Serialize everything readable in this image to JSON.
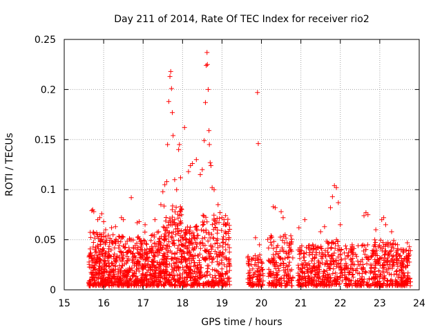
{
  "chart_data": {
    "type": "scatter",
    "title": "Day 211 of 2014, Rate Of TEC Index for receiver rio2",
    "xlabel": "GPS time / hours",
    "ylabel": "ROTI / TECUs",
    "xlim": [
      15,
      24
    ],
    "ylim": [
      0,
      0.25
    ],
    "xticks": [
      15,
      16,
      17,
      18,
      19,
      20,
      21,
      22,
      23,
      24
    ],
    "xtick_labels": [
      "15",
      "16",
      "17",
      "18",
      "19",
      "20",
      "21",
      "22",
      "23",
      "24"
    ],
    "yticks": [
      0,
      0.05,
      0.1,
      0.15,
      0.2,
      0.25
    ],
    "ytick_labels": [
      "0",
      "0.05",
      "0.1",
      "0.15",
      "0.2",
      "0.25"
    ],
    "grid": true,
    "marker": "+",
    "series_color": "#ff0000",
    "series": [
      {
        "name": "rio2",
        "points": [
          [
            15.7,
            0.079
          ],
          [
            15.72,
            0.08
          ],
          [
            15.75,
            0.078
          ],
          [
            15.85,
            0.07
          ],
          [
            15.9,
            0.072
          ],
          [
            15.95,
            0.076
          ],
          [
            16.0,
            0.068
          ],
          [
            16.05,
            0.06
          ],
          [
            16.2,
            0.062
          ],
          [
            16.3,
            0.063
          ],
          [
            16.45,
            0.072
          ],
          [
            16.5,
            0.07
          ],
          [
            16.7,
            0.092
          ],
          [
            16.85,
            0.067
          ],
          [
            16.9,
            0.068
          ],
          [
            17.05,
            0.065
          ],
          [
            17.3,
            0.07
          ],
          [
            17.45,
            0.085
          ],
          [
            17.5,
            0.098
          ],
          [
            17.55,
            0.105
          ],
          [
            17.6,
            0.108
          ],
          [
            17.62,
            0.145
          ],
          [
            17.65,
            0.188
          ],
          [
            17.68,
            0.213
          ],
          [
            17.7,
            0.218
          ],
          [
            17.72,
            0.201
          ],
          [
            17.74,
            0.177
          ],
          [
            17.76,
            0.154
          ],
          [
            17.8,
            0.11
          ],
          [
            17.85,
            0.1
          ],
          [
            17.9,
            0.14
          ],
          [
            17.92,
            0.145
          ],
          [
            17.95,
            0.112
          ],
          [
            18.05,
            0.162
          ],
          [
            18.15,
            0.118
          ],
          [
            18.2,
            0.124
          ],
          [
            18.25,
            0.126
          ],
          [
            18.35,
            0.13
          ],
          [
            18.45,
            0.115
          ],
          [
            18.5,
            0.12
          ],
          [
            18.55,
            0.149
          ],
          [
            18.58,
            0.187
          ],
          [
            18.6,
            0.224
          ],
          [
            18.62,
            0.237
          ],
          [
            18.63,
            0.225
          ],
          [
            18.65,
            0.2
          ],
          [
            18.67,
            0.159
          ],
          [
            18.68,
            0.145
          ],
          [
            18.7,
            0.127
          ],
          [
            18.72,
            0.124
          ],
          [
            18.75,
            0.102
          ],
          [
            18.8,
            0.1
          ],
          [
            18.9,
            0.085
          ],
          [
            18.95,
            0.077
          ],
          [
            19.0,
            0.072
          ],
          [
            19.05,
            0.07
          ],
          [
            19.1,
            0.05
          ],
          [
            19.15,
            0.045
          ],
          [
            19.9,
            0.197
          ],
          [
            19.92,
            0.146
          ],
          [
            19.85,
            0.052
          ],
          [
            19.95,
            0.045
          ],
          [
            20.3,
            0.083
          ],
          [
            20.35,
            0.082
          ],
          [
            20.5,
            0.078
          ],
          [
            20.55,
            0.072
          ],
          [
            20.6,
            0.055
          ],
          [
            20.95,
            0.062
          ],
          [
            21.1,
            0.07
          ],
          [
            21.3,
            0.045
          ],
          [
            21.5,
            0.058
          ],
          [
            21.6,
            0.063
          ],
          [
            21.75,
            0.082
          ],
          [
            21.8,
            0.093
          ],
          [
            21.85,
            0.104
          ],
          [
            21.9,
            0.102
          ],
          [
            21.95,
            0.087
          ],
          [
            22.0,
            0.065
          ],
          [
            22.3,
            0.045
          ],
          [
            22.6,
            0.074
          ],
          [
            22.65,
            0.077
          ],
          [
            22.7,
            0.075
          ],
          [
            22.9,
            0.06
          ],
          [
            23.05,
            0.07
          ],
          [
            23.1,
            0.072
          ],
          [
            23.15,
            0.065
          ],
          [
            23.3,
            0.058
          ],
          [
            23.45,
            0.045
          ],
          [
            23.7,
            0.047
          ],
          [
            23.75,
            0.043
          ]
        ],
        "clusters": [
          {
            "x_start": 15.62,
            "x_end": 16.05,
            "y_max": 0.058,
            "count": 200,
            "seed": 11
          },
          {
            "x_start": 16.05,
            "x_end": 16.5,
            "y_max": 0.055,
            "count": 180,
            "seed": 12
          },
          {
            "x_start": 16.5,
            "x_end": 17.0,
            "y_max": 0.053,
            "count": 190,
            "seed": 13
          },
          {
            "x_start": 17.0,
            "x_end": 17.5,
            "y_max": 0.058,
            "count": 200,
            "seed": 14
          },
          {
            "x_start": 17.5,
            "x_end": 18.0,
            "y_max": 0.085,
            "count": 230,
            "seed": 15
          },
          {
            "x_start": 18.0,
            "x_end": 18.5,
            "y_max": 0.065,
            "count": 200,
            "seed": 16
          },
          {
            "x_start": 18.5,
            "x_end": 19.2,
            "y_max": 0.075,
            "count": 230,
            "seed": 17
          },
          {
            "x_start": 19.65,
            "x_end": 20.05,
            "y_max": 0.035,
            "count": 100,
            "seed": 18
          },
          {
            "x_start": 20.15,
            "x_end": 20.8,
            "y_max": 0.055,
            "count": 170,
            "seed": 19
          },
          {
            "x_start": 20.9,
            "x_end": 21.45,
            "y_max": 0.045,
            "count": 160,
            "seed": 20
          },
          {
            "x_start": 21.45,
            "x_end": 22.05,
            "y_max": 0.05,
            "count": 170,
            "seed": 21
          },
          {
            "x_start": 22.1,
            "x_end": 22.85,
            "y_max": 0.045,
            "count": 170,
            "seed": 22
          },
          {
            "x_start": 22.85,
            "x_end": 23.4,
            "y_max": 0.05,
            "count": 170,
            "seed": 23
          },
          {
            "x_start": 23.4,
            "x_end": 23.78,
            "y_max": 0.042,
            "count": 130,
            "seed": 24
          }
        ]
      }
    ]
  }
}
